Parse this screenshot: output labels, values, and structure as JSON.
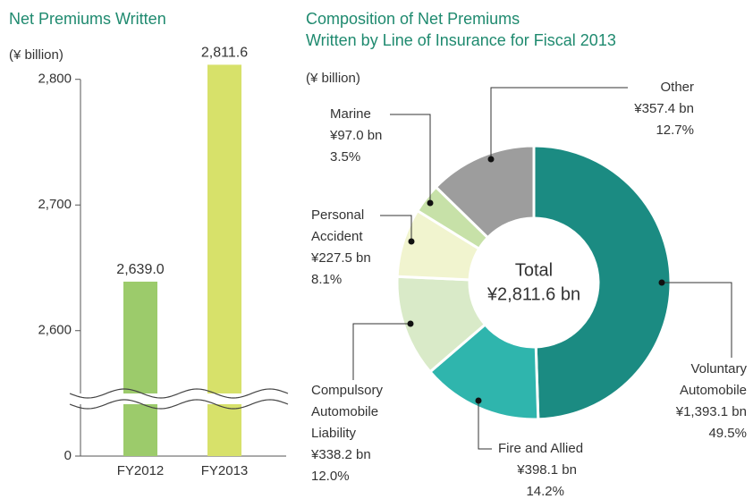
{
  "chart_data": [
    {
      "type": "bar",
      "title": "Net Premiums Written",
      "unit_label": "(¥ billion)",
      "categories": [
        "FY2012",
        "FY2013"
      ],
      "values": [
        2639.0,
        2811.6
      ],
      "value_labels": [
        "2,639.0",
        "2,811.6"
      ],
      "colors": [
        "#9ccb6b",
        "#d7e16a"
      ],
      "ylim": [
        0,
        2820
      ],
      "axis_break": [
        0,
        2550
      ],
      "yticks": [
        0,
        2600,
        2700,
        2800
      ],
      "ytick_labels": [
        "0",
        "2,600",
        "2,700",
        "2,800"
      ],
      "grid": false
    },
    {
      "type": "donut",
      "title": [
        "Composition of Net Premiums",
        "Written by Line of Insurance for Fiscal 2013"
      ],
      "unit_label": "(¥ billion)",
      "center_label": "Total",
      "total": 2811.6,
      "total_label": "¥2,811.6 bn",
      "categories": [
        [
          "Voluntary",
          "Automobile"
        ],
        [
          "Fire and Allied"
        ],
        [
          "Compulsory",
          "Automobile",
          "Liability"
        ],
        [
          "Personal",
          "Accident"
        ],
        [
          "Marine"
        ],
        [
          "Other"
        ]
      ],
      "values": [
        49.5,
        14.2,
        12.0,
        8.1,
        3.5,
        12.7
      ],
      "value_labels": [
        "49.5%",
        "14.2%",
        "12.0%",
        "8.1%",
        "3.5%",
        "12.7%"
      ],
      "amounts": [
        1393.1,
        398.1,
        338.2,
        227.5,
        97.0,
        357.4
      ],
      "amount_labels": [
        "¥1,393.1 bn",
        "¥398.1 bn",
        "¥338.2 bn",
        "¥227.5 bn",
        "¥97.0 bn",
        "¥357.4 bn"
      ],
      "colors": [
        "#1b8b82",
        "#2fb5ad",
        "#d9eac8",
        "#f1f4cf",
        "#c7e1a8",
        "#9d9d9d"
      ]
    }
  ]
}
